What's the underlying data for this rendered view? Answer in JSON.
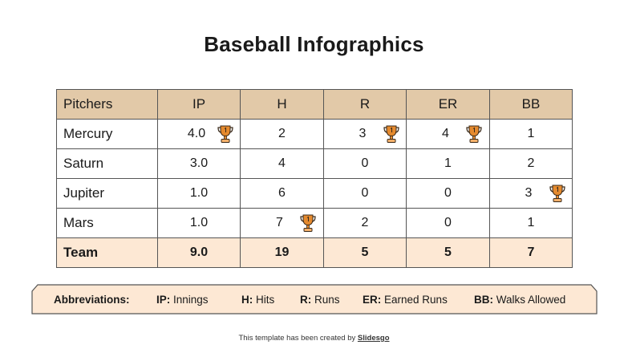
{
  "title": "Baseball Infographics",
  "table": {
    "headers": [
      "Pitchers",
      "IP",
      "H",
      "R",
      "ER",
      "BB"
    ],
    "rows": [
      {
        "name": "Mercury",
        "cells": [
          "4.0",
          "2",
          "3",
          "4",
          "1"
        ],
        "trophies": [
          true,
          false,
          true,
          true,
          false
        ]
      },
      {
        "name": "Saturn",
        "cells": [
          "3.0",
          "4",
          "0",
          "1",
          "2"
        ],
        "trophies": [
          false,
          false,
          false,
          false,
          false
        ]
      },
      {
        "name": "Jupiter",
        "cells": [
          "1.0",
          "6",
          "0",
          "0",
          "3"
        ],
        "trophies": [
          false,
          false,
          false,
          false,
          true
        ]
      },
      {
        "name": "Mars",
        "cells": [
          "1.0",
          "7",
          "2",
          "0",
          "1"
        ],
        "trophies": [
          false,
          true,
          false,
          false,
          false
        ]
      }
    ],
    "team": {
      "name": "Team",
      "cells": [
        "9.0",
        "19",
        "5",
        "5",
        "7"
      ]
    }
  },
  "abbreviations": {
    "lead": "Abbreviations:",
    "items": [
      {
        "key": "IP",
        "sep": ":",
        "desc": " Innings"
      },
      {
        "key": "H",
        "sep": ":",
        "desc": " Hits"
      },
      {
        "key": "R",
        "sep": ":",
        "desc": " Runs"
      },
      {
        "key": "ER",
        "sep": ":",
        "desc": " Earned Runs"
      },
      {
        "key": "BB",
        "sep": ":",
        "desc": " Walks Allowed"
      }
    ]
  },
  "footer": {
    "text": "This template has been created by ",
    "brand": "Slidesgo"
  },
  "colors": {
    "header_bg": "#e2c9a8",
    "team_bg": "#fde8d4",
    "abbr_bg": "#fde8d4",
    "trophy": "#e58a2e"
  },
  "icons": {
    "trophy": "trophy-icon"
  }
}
